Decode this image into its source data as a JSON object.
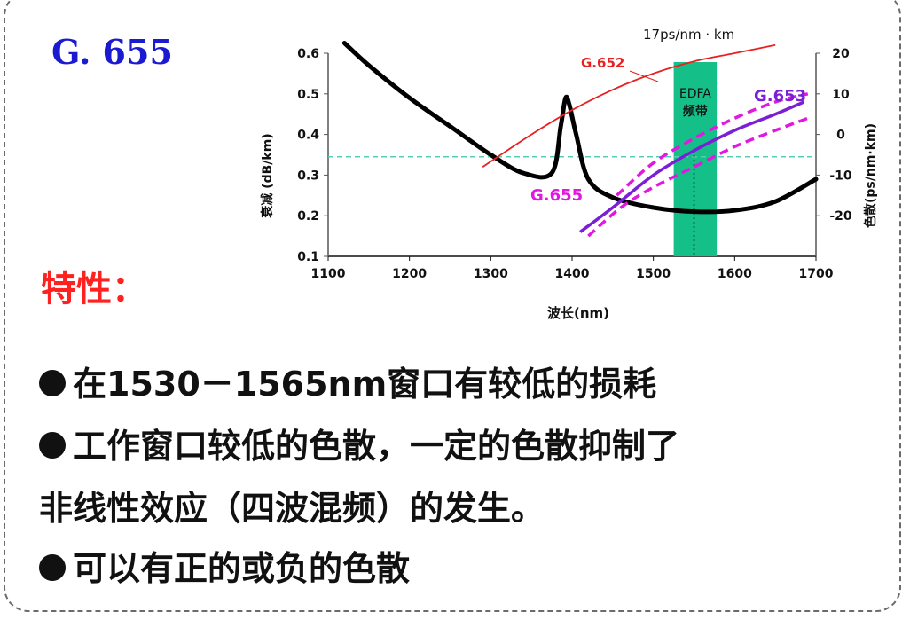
{
  "slide": {
    "title": "G. 655",
    "feature_heading": "特性：",
    "bullets": [
      "在1530－1565nm窗口有较低的损耗",
      "工作窗口较低的色散，一定的色散抑制了",
      "非线性效应（四波混频）的发生。",
      "可以有正的或负的色散"
    ]
  },
  "colors": {
    "title": "#1a1ad0",
    "heading": "#ff2020",
    "attenuation": "#000000",
    "g652": "#e82020",
    "g653": "#7a1fd6",
    "g655": "#e018e0",
    "edfa_band": "#14c087",
    "threshold_line": "#55ccb4"
  },
  "chart_data": {
    "type": "line",
    "xlabel": "波长(nm)",
    "ylabel_left": "衰减 (dB/km)",
    "ylabel_right": "色散(ps/nm·km)",
    "x_ticks": [
      "1100",
      "1200",
      "1300",
      "1400",
      "1500",
      "1600",
      "1700"
    ],
    "y_left_ticks": [
      "0.6",
      "0.5",
      "0.4",
      "0.3",
      "0.2",
      "0.1"
    ],
    "y_right_ticks": [
      "20",
      "10",
      "0",
      "-10",
      "-20"
    ],
    "xlim": [
      1100,
      1700
    ],
    "ylim_left": [
      0.1,
      0.6
    ],
    "ylim_right": [
      -30,
      20
    ],
    "annotations": {
      "top": "17ps/nm · km",
      "edfa_1": "EDFA",
      "edfa_2": "频带"
    },
    "edfa_band": [
      1525,
      1578
    ],
    "threshold_left": 0.345,
    "marker_x": 1550,
    "series": [
      {
        "name": "",
        "axis": "left",
        "style": "thick-black",
        "x": [
          1120,
          1150,
          1200,
          1250,
          1300,
          1340,
          1375,
          1386,
          1392,
          1397,
          1405,
          1420,
          1450,
          1500,
          1550,
          1600,
          1650,
          1700
        ],
        "y": [
          0.625,
          0.57,
          0.49,
          0.42,
          0.35,
          0.305,
          0.305,
          0.42,
          0.49,
          0.47,
          0.4,
          0.29,
          0.245,
          0.22,
          0.21,
          0.213,
          0.235,
          0.29
        ]
      },
      {
        "name": "G.652",
        "axis": "right",
        "style": "red",
        "x": [
          1290,
          1350,
          1400,
          1450,
          1500,
          1550,
          1600,
          1650
        ],
        "y": [
          -8,
          0,
          6,
          11,
          15,
          18,
          20,
          22
        ]
      },
      {
        "name": "G.653",
        "axis": "right",
        "style": "purple-solid",
        "x": [
          1410,
          1450,
          1500,
          1550,
          1600,
          1650,
          1685
        ],
        "y": [
          -24,
          -18,
          -10,
          -4,
          1,
          5,
          8
        ]
      },
      {
        "name": "",
        "axis": "right",
        "style": "magenta-dash",
        "x": [
          1420,
          1460,
          1500,
          1550,
          1600,
          1650,
          1690
        ],
        "y": [
          -25,
          -18,
          -13,
          -8,
          -3,
          1,
          4
        ]
      },
      {
        "name": "G.655",
        "axis": "right",
        "style": "magenta-dash",
        "x": [
          1455,
          1500,
          1550,
          1600,
          1650,
          1690
        ],
        "y": [
          -15,
          -7,
          -1,
          4,
          8,
          10
        ]
      }
    ],
    "labels": {
      "g652": "G.652",
      "g653": "G.653",
      "g655": "G.655"
    }
  }
}
